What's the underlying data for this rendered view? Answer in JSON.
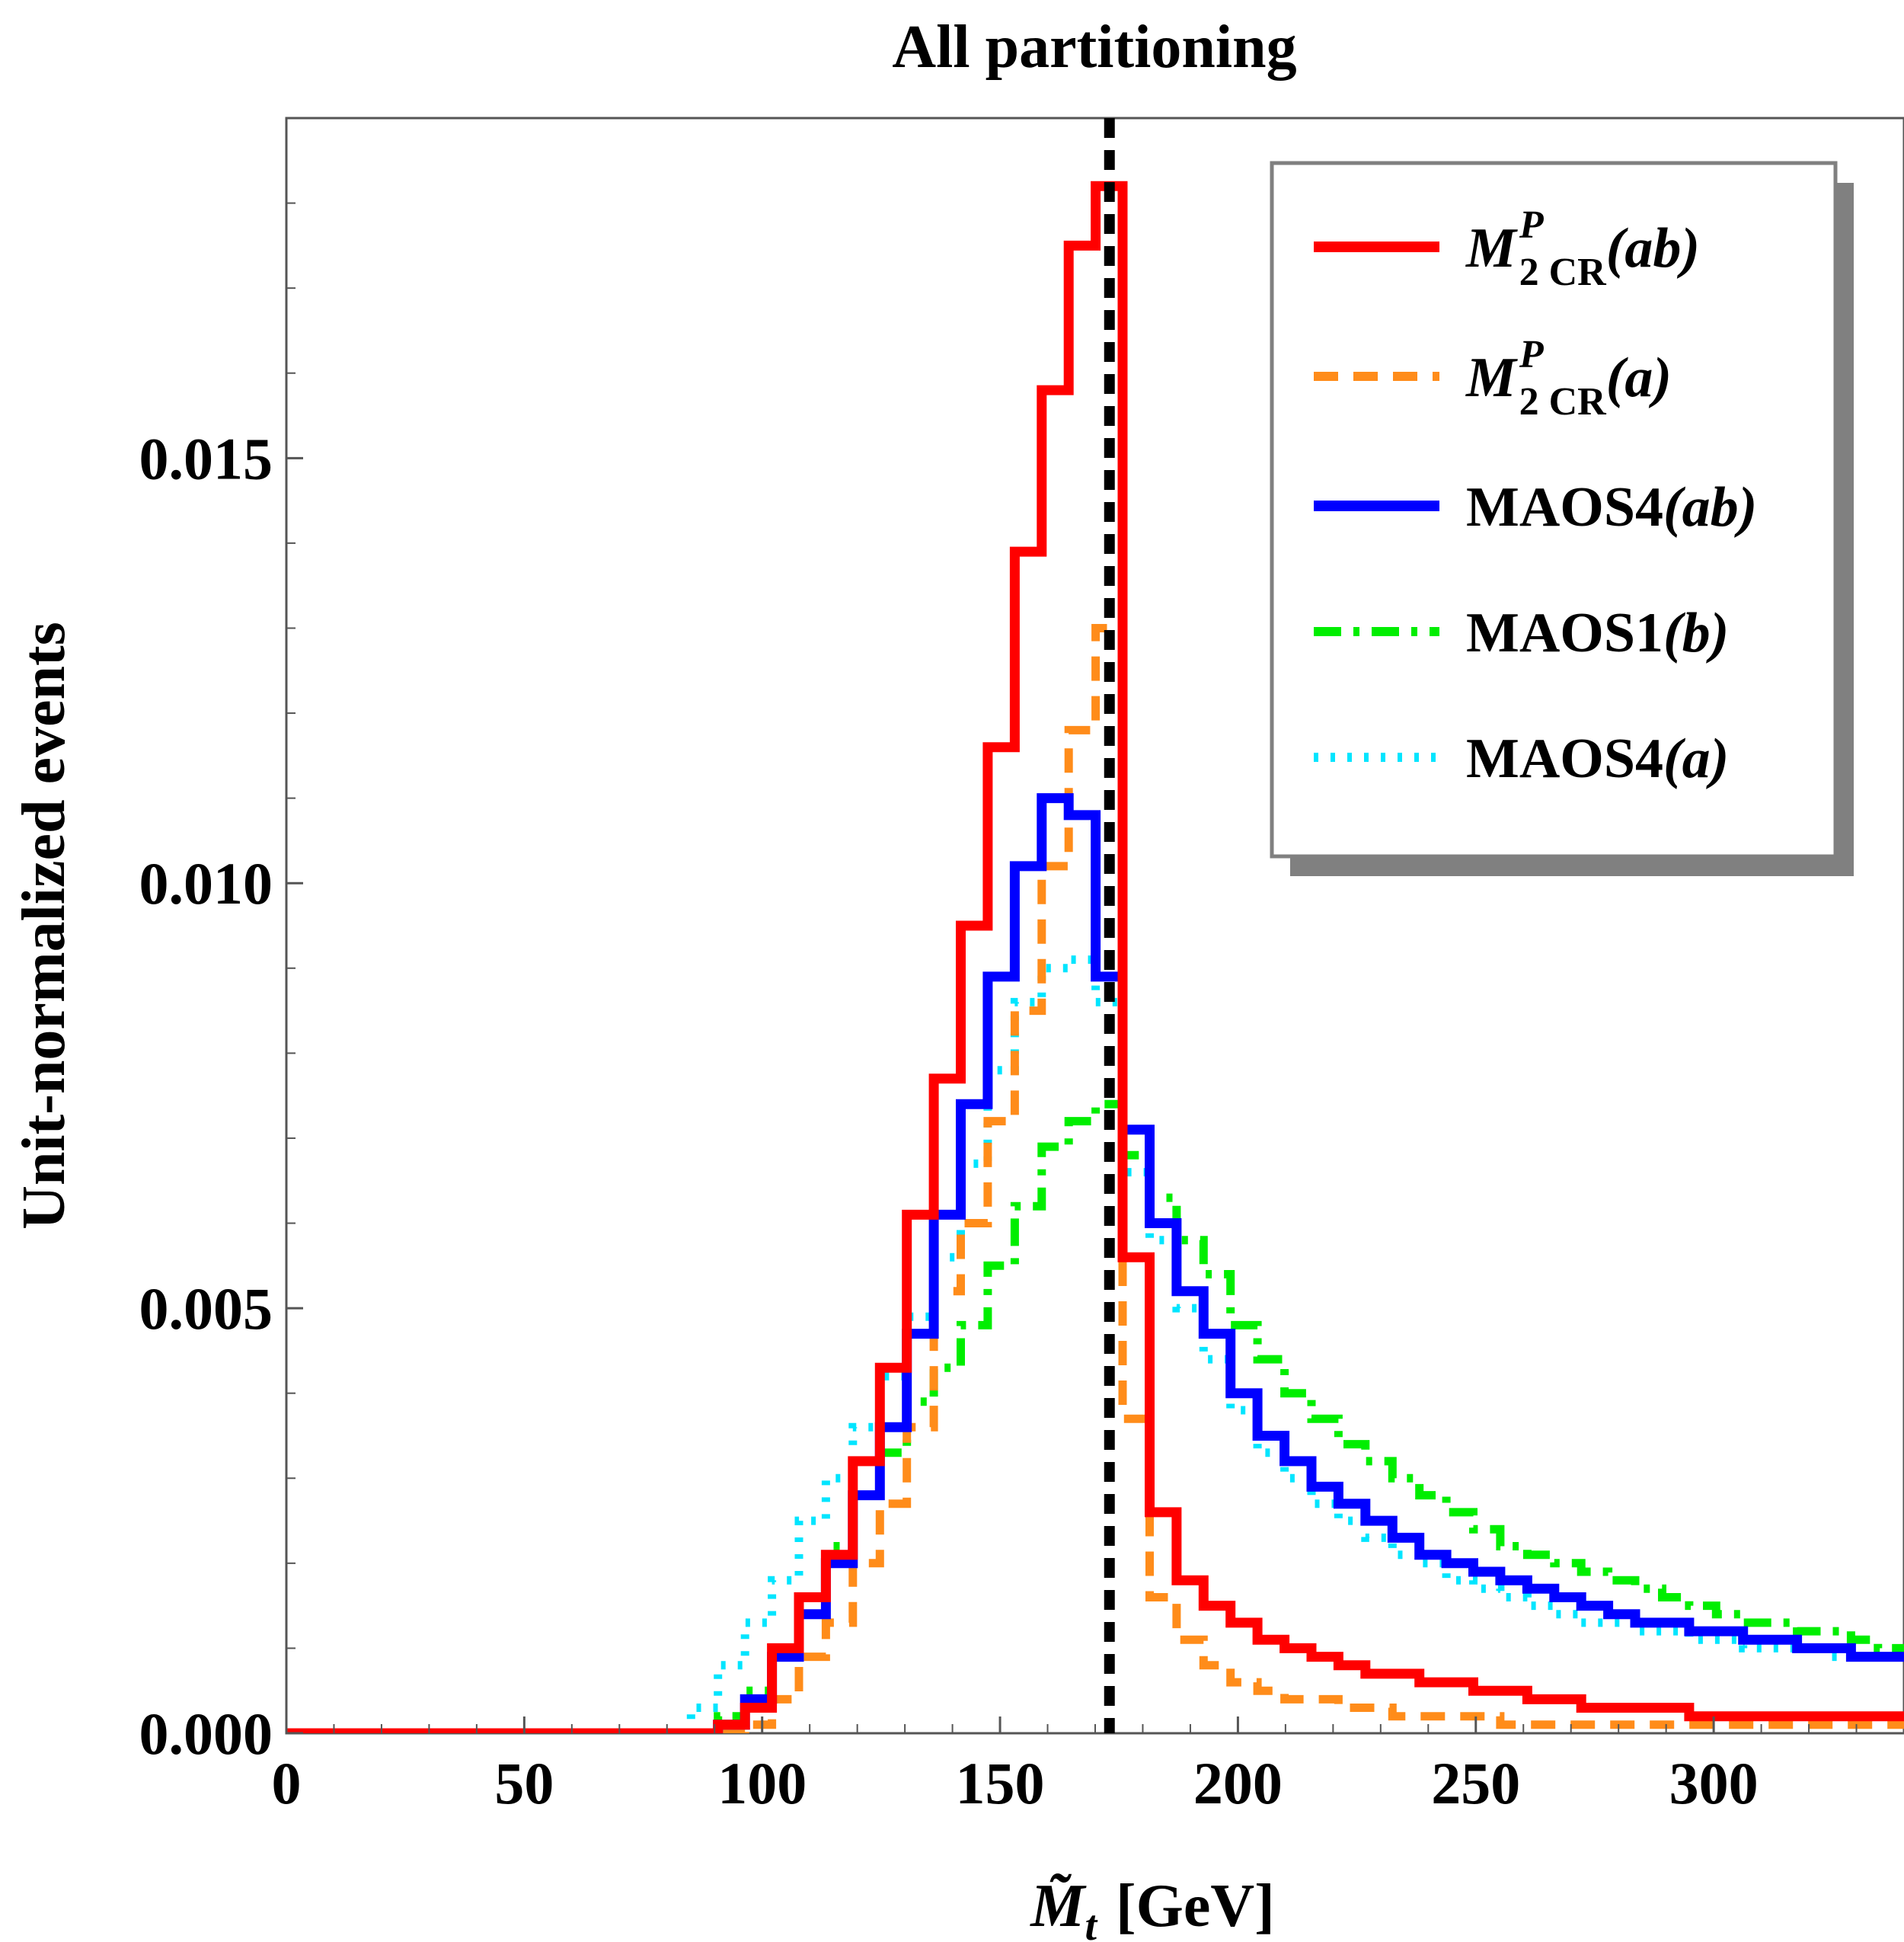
{
  "chart_data": {
    "type": "line",
    "title": "All partitioning",
    "xlabel": "M̃",
    "xlabel_sub": "t",
    "xlabel_unit": "[GeV]",
    "ylabel": "Unit-normalized events",
    "xlim": [
      0,
      340
    ],
    "ylim": [
      0,
      0.019
    ],
    "xticks": [
      0,
      50,
      100,
      150,
      200,
      250,
      300
    ],
    "xtick_labels": [
      "0",
      "50",
      "100",
      "150",
      "200",
      "250",
      "300"
    ],
    "yticks": [
      0,
      0.005,
      0.01,
      0.015
    ],
    "ytick_labels": [
      "0.000",
      "0.005",
      "0.010",
      "0.015"
    ],
    "bin_width": 5.67,
    "bin_edges_start": 0,
    "reference_line": {
      "x": 173,
      "style": "dashed",
      "color": "#000000"
    },
    "legend_position": "top-right",
    "legend_shadow": true,
    "series": [
      {
        "name": "M2CR^P(ab)",
        "label_main": "M",
        "label_sub": "2 CR",
        "label_sup": "P",
        "label_arg": "(ab)",
        "color": "#ff0000",
        "style": "solid",
        "values": [
          0,
          0,
          0,
          0,
          0,
          0,
          0,
          0,
          0,
          0,
          0,
          0,
          0,
          0,
          0,
          0,
          0.0001,
          0.0003,
          0.001,
          0.0016,
          0.0021,
          0.0032,
          0.0043,
          0.0061,
          0.0077,
          0.0095,
          0.0116,
          0.0139,
          0.0158,
          0.0175,
          0.0182,
          0.0056,
          0.0026,
          0.0018,
          0.0015,
          0.0013,
          0.0011,
          0.001,
          0.0009,
          0.0008,
          0.0007,
          0.0007,
          0.0006,
          0.0006,
          0.0005,
          0.0005,
          0.0004,
          0.0004,
          0.0003,
          0.0003,
          0.0003,
          0.0003,
          0.0002,
          0.0002,
          0.0002,
          0.0002,
          0.0002,
          0.0002,
          0.0002,
          0.0002
        ]
      },
      {
        "name": "M2CR^P(a)",
        "label_main": "M",
        "label_sub": "2 CR",
        "label_sup": "P",
        "label_arg": "(a)",
        "color": "#ff8c1a",
        "style": "dashed",
        "values": [
          0,
          0,
          0,
          0,
          0,
          0,
          0,
          0,
          0,
          0,
          0,
          0,
          0,
          0,
          0,
          0,
          0,
          0.0001,
          0.0004,
          0.0009,
          0.0013,
          0.002,
          0.0027,
          0.0036,
          0.0052,
          0.006,
          0.0072,
          0.0085,
          0.0102,
          0.0118,
          0.013,
          0.0037,
          0.0016,
          0.0011,
          0.0008,
          0.0006,
          0.0005,
          0.0004,
          0.0004,
          0.0003,
          0.0003,
          0.0002,
          0.0002,
          0.0002,
          0.0002,
          0.0001,
          0.0001,
          0.0001,
          0.0001,
          0.0001,
          0.0001,
          0.0001,
          0.0001,
          0.0001,
          0.0001,
          0.0001,
          0.0001,
          0.0001,
          0.0001,
          0.0001
        ]
      },
      {
        "name": "MAOS4(ab)",
        "label_main": "MAOS4",
        "label_sub": "",
        "label_sup": "",
        "label_arg": "(ab)",
        "color": "#0000ff",
        "style": "solid",
        "values": [
          0,
          0,
          0,
          0,
          0,
          0,
          0,
          0,
          0,
          0,
          0,
          0,
          0,
          0,
          0,
          0,
          0.0001,
          0.0004,
          0.0009,
          0.0014,
          0.002,
          0.0028,
          0.0036,
          0.0047,
          0.0061,
          0.0074,
          0.0089,
          0.0102,
          0.011,
          0.0108,
          0.0089,
          0.0071,
          0.006,
          0.0052,
          0.0047,
          0.004,
          0.0035,
          0.0032,
          0.0029,
          0.0027,
          0.0025,
          0.0023,
          0.0021,
          0.002,
          0.0019,
          0.0018,
          0.0017,
          0.0016,
          0.0015,
          0.0014,
          0.0013,
          0.0013,
          0.0012,
          0.0012,
          0.0011,
          0.0011,
          0.001,
          0.001,
          0.0009,
          0.0009
        ]
      },
      {
        "name": "MAOS1(b)",
        "label_main": "MAOS1",
        "label_sub": "",
        "label_sup": "",
        "label_arg": "(b)",
        "color": "#00ee00",
        "style": "dashdot",
        "values": [
          0,
          0,
          0,
          0,
          0,
          0,
          0,
          0,
          0,
          0,
          0,
          0,
          0,
          0,
          0,
          0,
          0.0002,
          0.0005,
          0.001,
          0.0016,
          0.0022,
          0.0028,
          0.0033,
          0.0039,
          0.0043,
          0.0048,
          0.0055,
          0.0062,
          0.0069,
          0.0072,
          0.0074,
          0.0068,
          0.0063,
          0.0058,
          0.0054,
          0.0048,
          0.0044,
          0.004,
          0.0037,
          0.0034,
          0.0032,
          0.003,
          0.0028,
          0.0026,
          0.0024,
          0.0022,
          0.0021,
          0.002,
          0.0019,
          0.0018,
          0.0017,
          0.0016,
          0.0015,
          0.0014,
          0.0013,
          0.0013,
          0.0012,
          0.0012,
          0.0011,
          0.001
        ]
      },
      {
        "name": "MAOS4(a)",
        "label_main": "MAOS4",
        "label_sub": "",
        "label_sup": "",
        "label_arg": "(a)",
        "color": "#00e5ff",
        "style": "dotted",
        "values": [
          0,
          0,
          0,
          0,
          0,
          0,
          0,
          0,
          0,
          0,
          0,
          0,
          0,
          0,
          0,
          0.0003,
          0.0008,
          0.0013,
          0.0018,
          0.0025,
          0.003,
          0.0036,
          0.0042,
          0.0049,
          0.0056,
          0.0067,
          0.0078,
          0.0086,
          0.009,
          0.0091,
          0.0086,
          0.0066,
          0.0058,
          0.005,
          0.0044,
          0.0038,
          0.0033,
          0.003,
          0.0027,
          0.0025,
          0.0023,
          0.0021,
          0.002,
          0.0018,
          0.0017,
          0.0016,
          0.0015,
          0.0014,
          0.0013,
          0.0013,
          0.0012,
          0.0012,
          0.0011,
          0.0011,
          0.001,
          0.001,
          0.001,
          0.0009,
          0.0009,
          0.0009
        ]
      }
    ]
  }
}
